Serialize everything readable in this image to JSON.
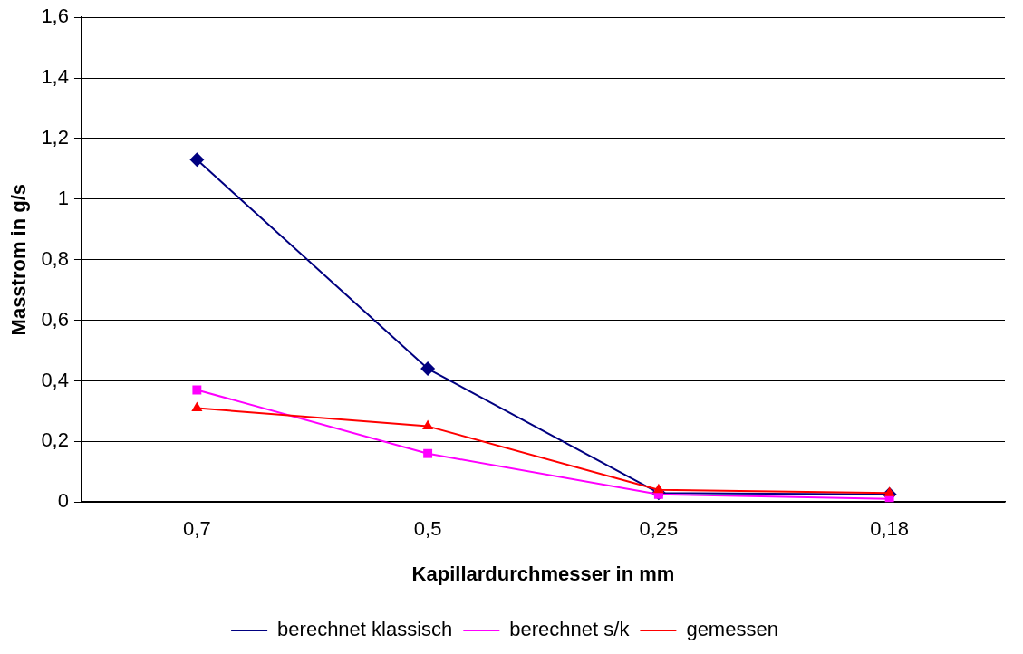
{
  "chart_data": {
    "type": "line",
    "xlabel": "Kapillardurchmesser in mm",
    "ylabel": "Masstrom in g/s",
    "categories": [
      "0,7",
      "0,5",
      "0,25",
      "0,18"
    ],
    "series": [
      {
        "name": "berechnet klassisch",
        "color": "#000080",
        "marker": "diamond",
        "values": [
          1.13,
          0.44,
          0.03,
          0.025
        ]
      },
      {
        "name": "berechnet s/k",
        "color": "#ff00ff",
        "marker": "square",
        "values": [
          0.37,
          0.16,
          0.025,
          0.01
        ]
      },
      {
        "name": "gemessen",
        "color": "#ff0000",
        "marker": "triangle",
        "values": [
          0.31,
          0.25,
          0.04,
          0.03
        ]
      }
    ],
    "ylim": [
      0,
      1.6
    ],
    "yticks": [
      {
        "value": 0,
        "label": "0"
      },
      {
        "value": 0.2,
        "label": "0,2"
      },
      {
        "value": 0.4,
        "label": "0,4"
      },
      {
        "value": 0.6,
        "label": "0,6"
      },
      {
        "value": 0.8,
        "label": "0,8"
      },
      {
        "value": 1,
        "label": "1"
      },
      {
        "value": 1.2,
        "label": "1,2"
      },
      {
        "value": 1.4,
        "label": "1,4"
      },
      {
        "value": 1.6,
        "label": "1,6"
      }
    ],
    "grid": "y",
    "legend": "bottom",
    "line_style": "solid"
  }
}
